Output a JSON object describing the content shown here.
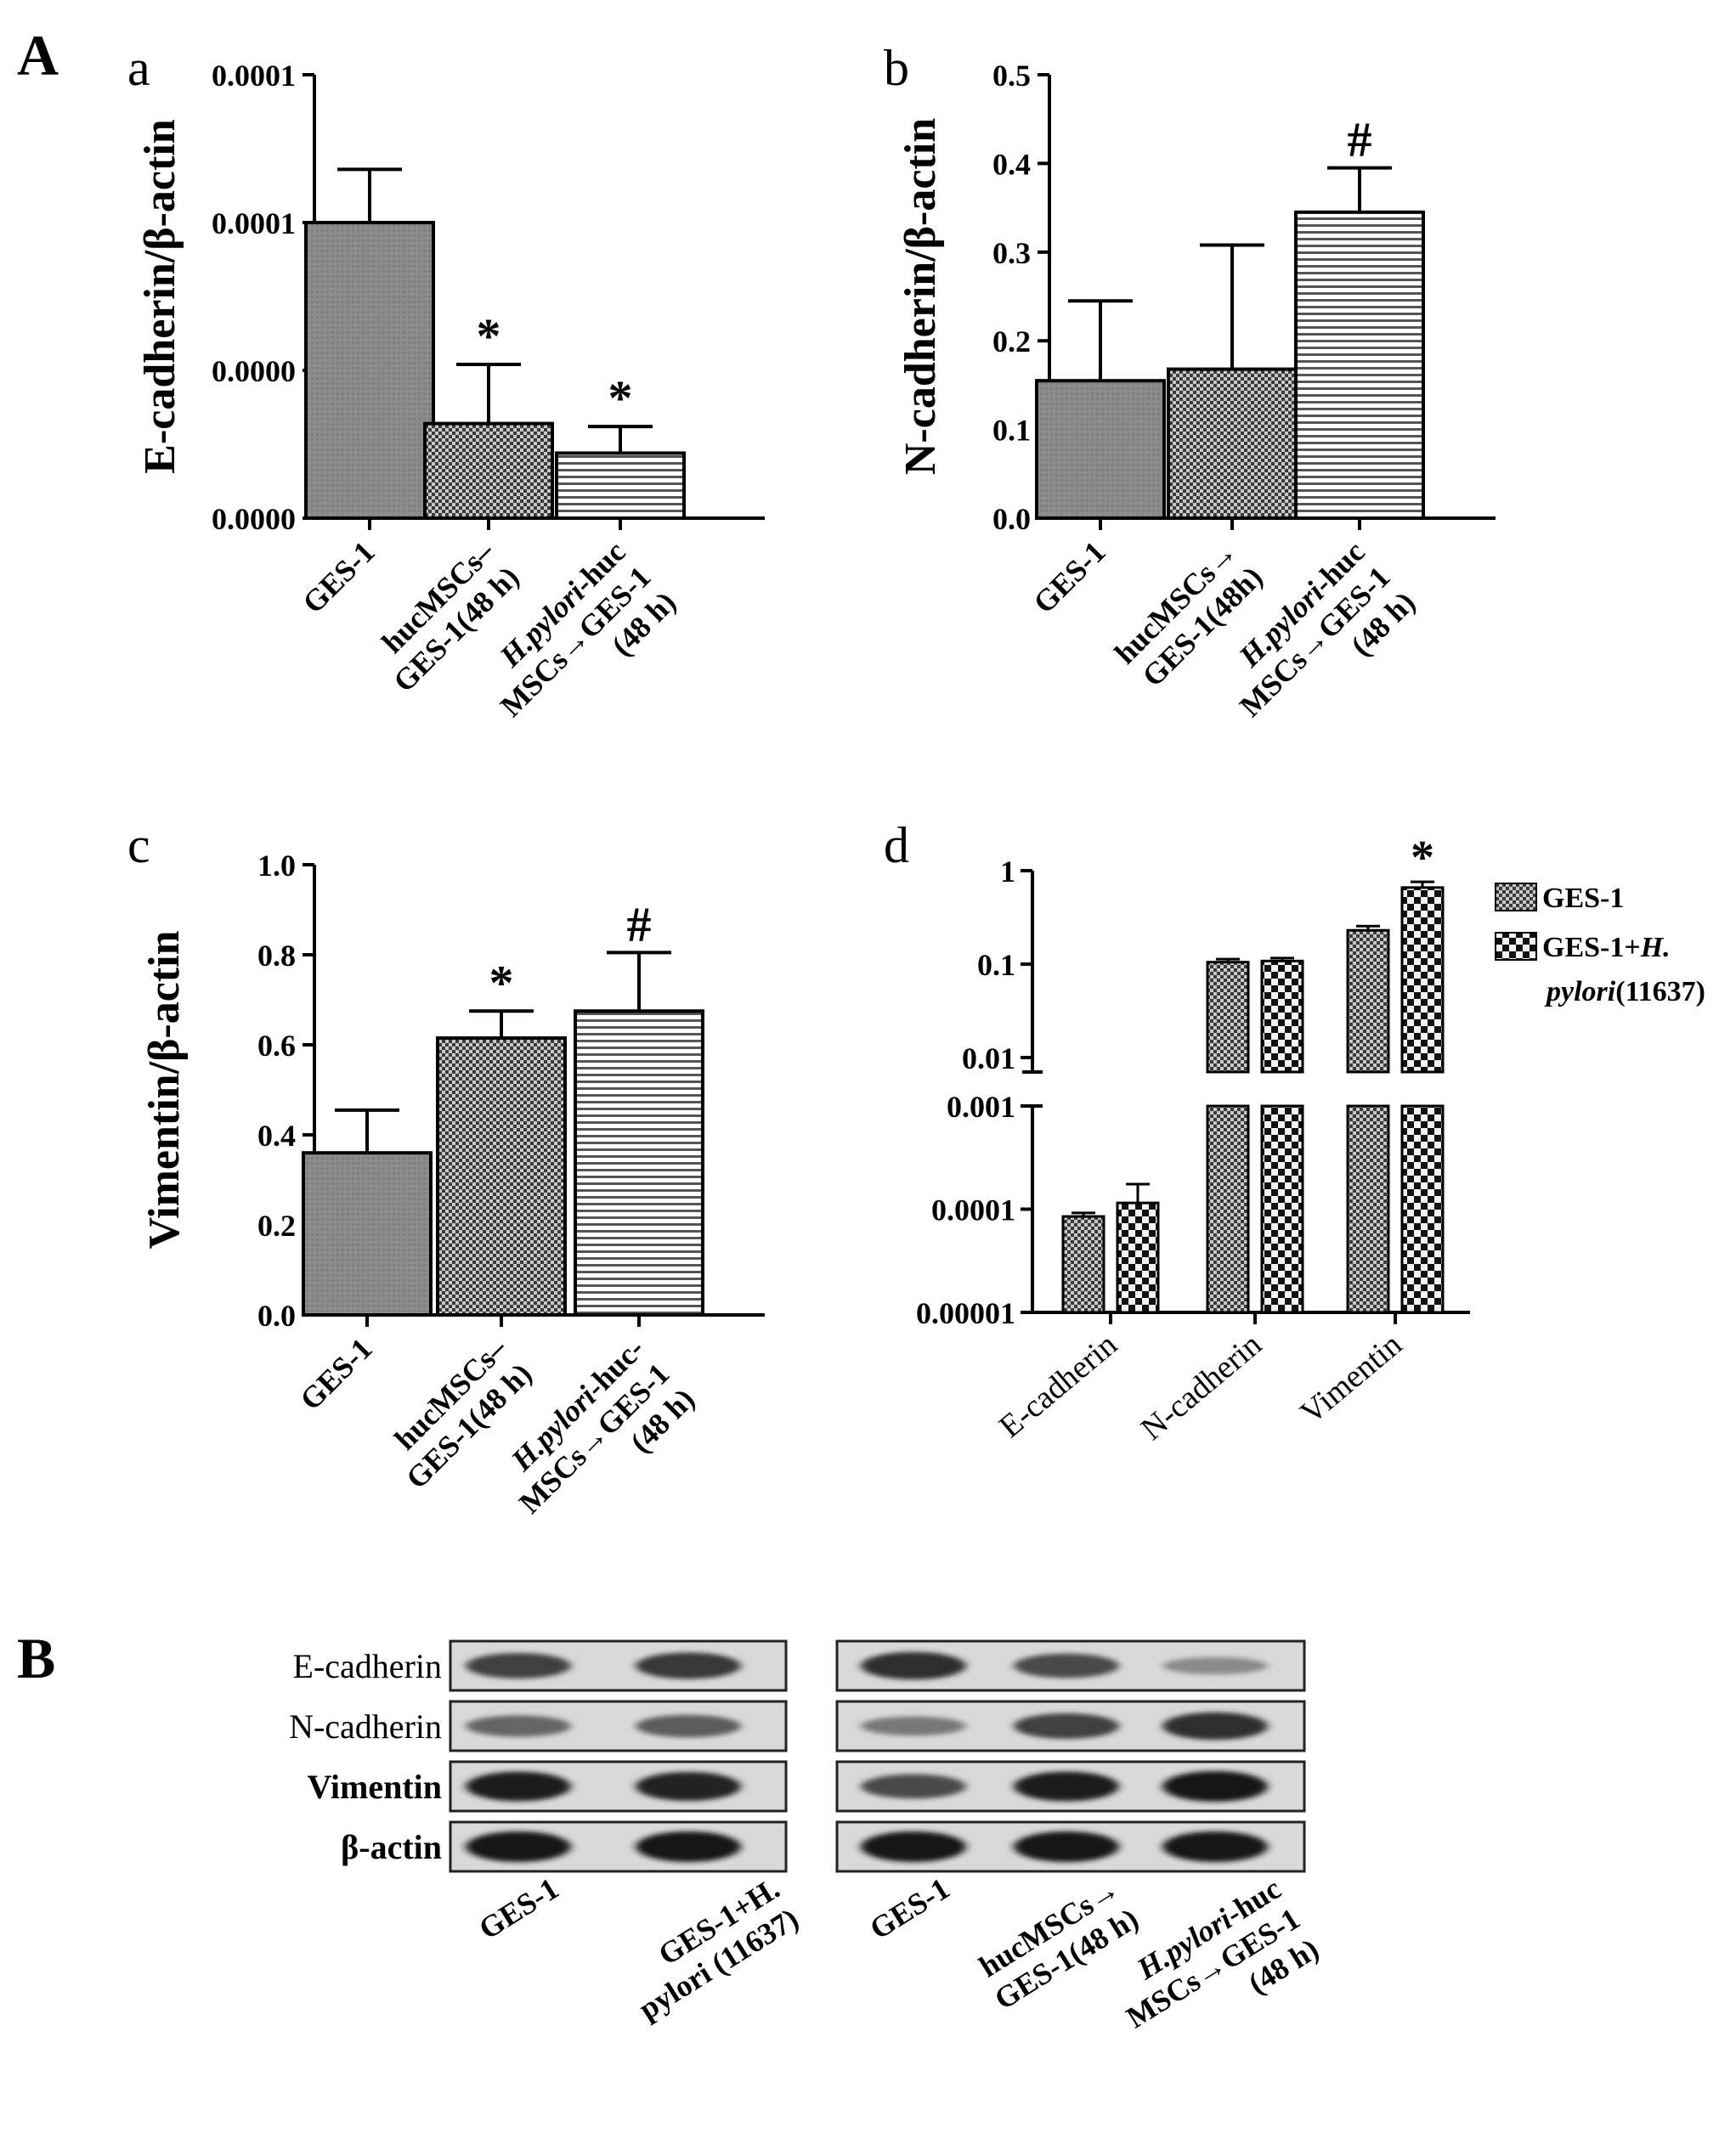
{
  "figure": {
    "panel_A_label": "A",
    "panel_B_label": "B",
    "colors": {
      "bar": "#8c8c8c",
      "ink": "#000000",
      "background": "#ffffff"
    }
  },
  "chart_data": [
    {
      "panel": "a",
      "type": "bar",
      "ylabel": "E-cadherin/β-actin",
      "y_tick_labels": [
        "0.0000",
        "0.0000",
        "0.0001",
        "0.0001"
      ],
      "ylim": [
        0,
        0.00015
      ],
      "y_ticks": [
        0,
        5e-05,
        0.0001,
        0.00015
      ],
      "categories": [
        [
          "GES-1"
        ],
        [
          "hucMSCs–",
          "GES-1(48 h)"
        ],
        [
          "H.pylori-huc",
          "MSCs→GES-1",
          "(48 h)"
        ]
      ],
      "values": [
        0.0001,
        3.2e-05,
        2.2e-05
      ],
      "errors": [
        1.8e-05,
        2e-05,
        9e-06
      ],
      "patterns": [
        "solid",
        "checker",
        "hstripe"
      ],
      "markers": [
        "",
        "*",
        "*"
      ]
    },
    {
      "panel": "b",
      "type": "bar",
      "ylabel": "N-cadherin/β-actin",
      "y_tick_labels": [
        "0.0",
        "0.1",
        "0.2",
        "0.3",
        "0.4",
        "0.5"
      ],
      "ylim": [
        0,
        0.5
      ],
      "y_ticks": [
        0,
        0.1,
        0.2,
        0.3,
        0.4,
        0.5
      ],
      "categories": [
        [
          "GES-1"
        ],
        [
          "hucMSCs→",
          "GES-1(48h)"
        ],
        [
          "H.pylori-huc",
          "MSCs→GES-1",
          "(48 h)"
        ]
      ],
      "values": [
        0.155,
        0.168,
        0.345
      ],
      "errors": [
        0.09,
        0.14,
        0.05
      ],
      "patterns": [
        "solid",
        "checker",
        "hstripe"
      ],
      "markers": [
        "",
        "",
        "#"
      ]
    },
    {
      "panel": "c",
      "type": "bar",
      "ylabel": "Vimentin/β-actin",
      "y_tick_labels": [
        "0.0",
        "0.2",
        "0.4",
        "0.6",
        "0.8",
        "1.0"
      ],
      "ylim": [
        0,
        1.0
      ],
      "y_ticks": [
        0,
        0.2,
        0.4,
        0.6,
        0.8,
        1.0
      ],
      "categories": [
        [
          "GES-1"
        ],
        [
          "hucMSCs–",
          "GES-1(48 h)"
        ],
        [
          "H.pylori-huc-",
          "MSCs→GES-1",
          "(48 h)"
        ]
      ],
      "values": [
        0.36,
        0.615,
        0.675
      ],
      "errors": [
        0.095,
        0.06,
        0.13
      ],
      "patterns": [
        "solid",
        "checker",
        "hstripe"
      ],
      "markers": [
        "",
        "*",
        "#"
      ]
    },
    {
      "panel": "d",
      "type": "bar",
      "scale": "log",
      "axis_break": [
        0.002,
        0.008
      ],
      "y_tick_labels": [
        "0.00001",
        "0.0001",
        "0.001",
        "0.01",
        "0.1",
        "1"
      ],
      "y_ticks": [
        1e-05,
        0.0001,
        0.001,
        0.01,
        0.1,
        1
      ],
      "categories": [
        "E-cadherin",
        "N-cadherin",
        "Vimentin"
      ],
      "legend_position": "top-right",
      "series": [
        {
          "name": "GES-1",
          "pattern": "checker",
          "values": [
            8.5e-05,
            0.105,
            0.23
          ],
          "errors": [
            7e-06,
            0.008,
            0.025
          ]
        },
        {
          "name": "GES-1+H. pylori(11637)",
          "pattern": "bigchecker",
          "values": [
            0.000115,
            0.108,
            0.66
          ],
          "errors": [
            6e-05,
            0.008,
            0.1
          ]
        }
      ],
      "markers": [
        [
          "",
          ""
        ],
        [
          "",
          ""
        ],
        [
          "",
          "*"
        ]
      ]
    }
  ],
  "blot": {
    "row_labels": [
      "E-cadherin",
      "N-cadherin",
      "Vimentin",
      "β-actin"
    ],
    "left_lanes": [
      [
        "GES-1"
      ],
      [
        "GES-1+H.",
        "pylori (11637)"
      ]
    ],
    "right_lanes": [
      [
        "GES-1"
      ],
      [
        "hucMSCs→",
        "GES-1(48 h)"
      ],
      [
        "H.pylori-huc",
        "MSCs→GES-1",
        "(48 h)"
      ]
    ],
    "left_intensity": [
      [
        0.75,
        0.8
      ],
      [
        0.55,
        0.6
      ],
      [
        0.95,
        0.92
      ],
      [
        1.0,
        1.0
      ]
    ],
    "right_intensity": [
      [
        0.85,
        0.7,
        0.35
      ],
      [
        0.45,
        0.75,
        0.85
      ],
      [
        0.7,
        0.95,
        1.0
      ],
      [
        1.0,
        1.0,
        1.0
      ]
    ]
  }
}
